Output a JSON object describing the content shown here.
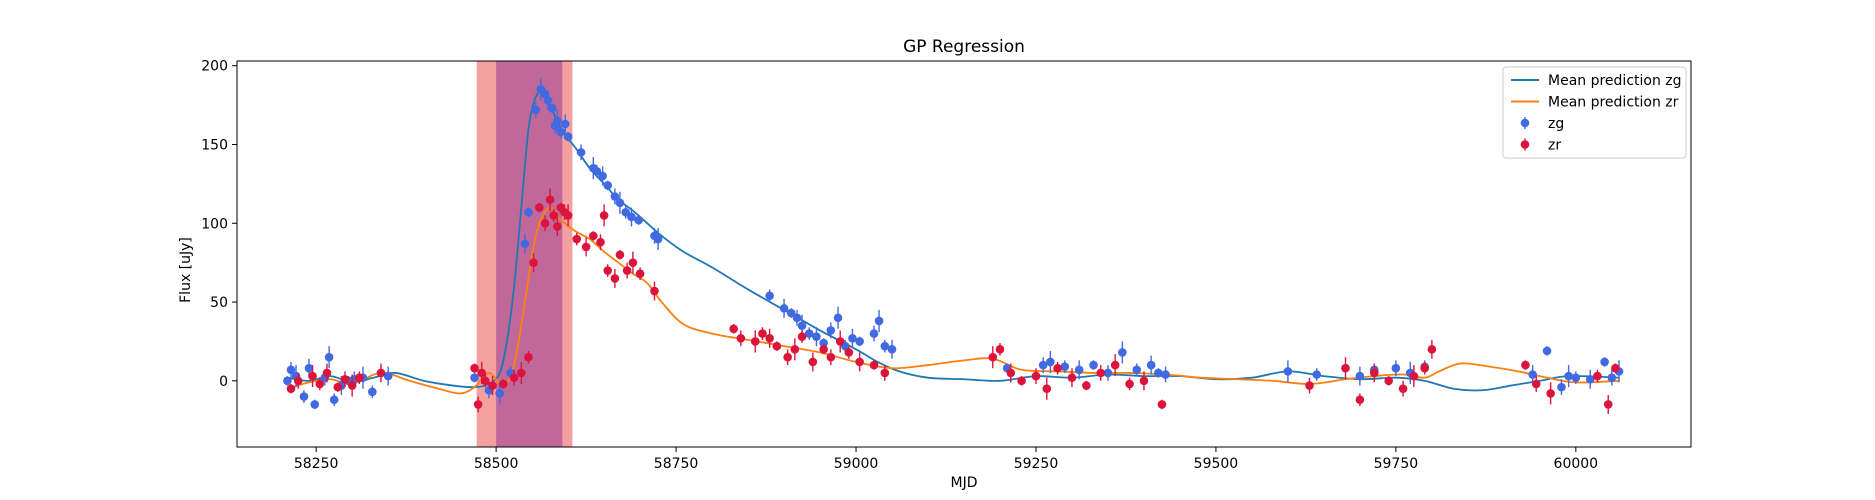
{
  "chart_data": {
    "type": "scatter",
    "title": "GP Regression",
    "xlabel": "MJD",
    "ylabel": "Flux [uJy]",
    "xlim": [
      58140,
      60160
    ],
    "ylim": [
      -42,
      203
    ],
    "xticks": [
      58250,
      58500,
      58750,
      59000,
      59250,
      59500,
      59750,
      60000
    ],
    "yticks": [
      0,
      50,
      100,
      150,
      200
    ],
    "grid": false,
    "legend_position": "top-right",
    "colors": {
      "mean_zg": "#1f77b4",
      "mean_zr": "#ff7f0e",
      "points_zg": "#4169e1",
      "points_zr": "#dc143c",
      "band_red": "#f08080",
      "band_purple": "#b0559a"
    },
    "shaded_regions": [
      {
        "name": "outer-band",
        "x0": 58473,
        "x1": 58606,
        "color": "#f08080"
      },
      {
        "name": "inner-band",
        "x0": 58500,
        "x1": 58592,
        "color": "#b0559a"
      }
    ],
    "series": [
      {
        "name": "Mean prediction zg",
        "kind": "line",
        "x": [
          58210,
          58240,
          58270,
          58300,
          58330,
          58360,
          58400,
          58440,
          58470,
          58490,
          58505,
          58515,
          58525,
          58535,
          58545,
          58555,
          58565,
          58575,
          58590,
          58610,
          58630,
          58650,
          58670,
          58690,
          58710,
          58730,
          58760,
          58800,
          58850,
          58900,
          58950,
          59000,
          59030,
          59060,
          59100,
          59150,
          59200,
          59250,
          59300,
          59350,
          59400,
          59450,
          59500,
          59550,
          59600,
          59650,
          59700,
          59750,
          59790,
          59830,
          59870,
          59910,
          59950,
          59990,
          60060
        ],
        "y": [
          2,
          0,
          3,
          -1,
          2,
          5,
          0,
          -3,
          -4,
          -2,
          5,
          25,
          60,
          110,
          160,
          180,
          183,
          175,
          160,
          148,
          135,
          125,
          115,
          108,
          100,
          92,
          82,
          72,
          58,
          45,
          32,
          20,
          12,
          6,
          2,
          1,
          0,
          3,
          2,
          4,
          3,
          3,
          1,
          2,
          6,
          3,
          1,
          2,
          0,
          -5,
          -6,
          -3,
          0,
          3,
          2
        ]
      },
      {
        "name": "Mean prediction zr",
        "kind": "line",
        "x": [
          58210,
          58240,
          58270,
          58300,
          58340,
          58380,
          58420,
          58450,
          58470,
          58490,
          58510,
          58525,
          58540,
          58550,
          58560,
          58575,
          58590,
          58610,
          58630,
          58650,
          58670,
          58690,
          58710,
          58730,
          58760,
          58800,
          58850,
          58900,
          58950,
          59000,
          59050,
          59100,
          59150,
          59190,
          59230,
          59280,
          59330,
          59380,
          59430,
          59480,
          59530,
          59580,
          59630,
          59680,
          59720,
          59760,
          59790,
          59810,
          59840,
          59880,
          59920,
          59960,
          60000,
          60060
        ],
        "y": [
          -5,
          -1,
          1,
          -2,
          5,
          0,
          -5,
          -8,
          -4,
          5,
          -3,
          10,
          50,
          80,
          100,
          110,
          102,
          95,
          90,
          82,
          75,
          68,
          62,
          50,
          36,
          30,
          26,
          22,
          18,
          12,
          8,
          10,
          13,
          14,
          7,
          6,
          5,
          5,
          4,
          2,
          1,
          0,
          -2,
          1,
          3,
          4,
          2,
          6,
          11,
          9,
          6,
          2,
          -1,
          0
        ]
      },
      {
        "name": "zg",
        "kind": "points",
        "x": [
          58210,
          58215,
          58222,
          58233,
          58240,
          58248,
          58262,
          58268,
          58275,
          58285,
          58295,
          58303,
          58315,
          58328,
          58350,
          58470,
          58490,
          58505,
          58520,
          58540,
          58545,
          58555,
          58562,
          58568,
          58572,
          58578,
          58582,
          58585,
          58590,
          58596,
          58600,
          58618,
          58635,
          58640,
          58648,
          58655,
          58665,
          58672,
          58680,
          58688,
          58698,
          58720,
          58725,
          58880,
          58900,
          58910,
          58918,
          58925,
          58935,
          58945,
          58955,
          58965,
          58975,
          58985,
          58995,
          59005,
          59025,
          59032,
          59040,
          59050,
          59210,
          59260,
          59270,
          59290,
          59310,
          59330,
          59350,
          59370,
          59390,
          59410,
          59420,
          59430,
          59600,
          59640,
          59700,
          59720,
          59750,
          59770,
          59790,
          59940,
          59960,
          59980,
          59990,
          60000,
          60020,
          60040,
          60050,
          60060
        ],
        "y": [
          0,
          7,
          3,
          -10,
          8,
          -15,
          2,
          15,
          -12,
          -3,
          0,
          1,
          2,
          -7,
          3,
          2,
          -6,
          -8,
          5,
          87,
          107,
          172,
          185,
          182,
          178,
          173,
          162,
          165,
          158,
          163,
          155,
          145,
          135,
          133,
          130,
          124,
          117,
          113,
          107,
          104,
          102,
          92,
          90,
          54,
          46,
          43,
          40,
          35,
          30,
          28,
          24,
          32,
          40,
          22,
          27,
          25,
          30,
          38,
          22,
          20,
          8,
          10,
          12,
          9,
          7,
          10,
          5,
          18,
          7,
          10,
          5,
          4,
          6,
          4,
          3,
          7,
          8,
          5,
          9,
          4,
          19,
          -4,
          3,
          2,
          1,
          12,
          2,
          6
        ]
      },
      {
        "name": "zr",
        "kind": "points",
        "x": [
          58215,
          58225,
          58245,
          58255,
          58265,
          58280,
          58290,
          58300,
          58310,
          58340,
          58470,
          58475,
          58480,
          58485,
          58495,
          58510,
          58525,
          58535,
          58545,
          58552,
          58560,
          58568,
          58575,
          58580,
          58585,
          58590,
          58595,
          58600,
          58612,
          58625,
          58635,
          58645,
          58650,
          58655,
          58665,
          58672,
          58682,
          58690,
          58700,
          58720,
          58830,
          58840,
          58860,
          58870,
          58880,
          58890,
          58905,
          58915,
          58925,
          58940,
          58955,
          58965,
          58978,
          58990,
          59005,
          59025,
          59040,
          59190,
          59200,
          59215,
          59230,
          59250,
          59265,
          59280,
          59300,
          59320,
          59340,
          59360,
          59380,
          59400,
          59425,
          59630,
          59680,
          59700,
          59720,
          59740,
          59760,
          59775,
          59790,
          59800,
          59930,
          59945,
          59965,
          60030,
          60045,
          60055
        ],
        "y": [
          -5,
          0,
          3,
          -2,
          5,
          -4,
          1,
          -3,
          2,
          5,
          8,
          -15,
          5,
          0,
          -3,
          -2,
          2,
          5,
          15,
          75,
          110,
          100,
          115,
          105,
          98,
          110,
          107,
          105,
          90,
          85,
          92,
          88,
          105,
          70,
          65,
          80,
          70,
          75,
          68,
          57,
          33,
          27,
          25,
          30,
          27,
          22,
          15,
          20,
          28,
          12,
          20,
          15,
          25,
          18,
          12,
          10,
          5,
          15,
          20,
          5,
          0,
          3,
          -5,
          8,
          2,
          -3,
          5,
          10,
          -2,
          0,
          -15,
          -3,
          8,
          -12,
          5,
          0,
          -5,
          3,
          8,
          20,
          10,
          -2,
          -8,
          3,
          -15,
          8
        ]
      }
    ],
    "legend": [
      {
        "label": "Mean prediction zg",
        "kind": "line",
        "color": "#1f77b4"
      },
      {
        "label": "Mean prediction zr",
        "kind": "line",
        "color": "#ff7f0e"
      },
      {
        "label": "zg",
        "kind": "errorbar",
        "color": "#4169e1"
      },
      {
        "label": "zr",
        "kind": "errorbar",
        "color": "#dc143c"
      }
    ]
  }
}
